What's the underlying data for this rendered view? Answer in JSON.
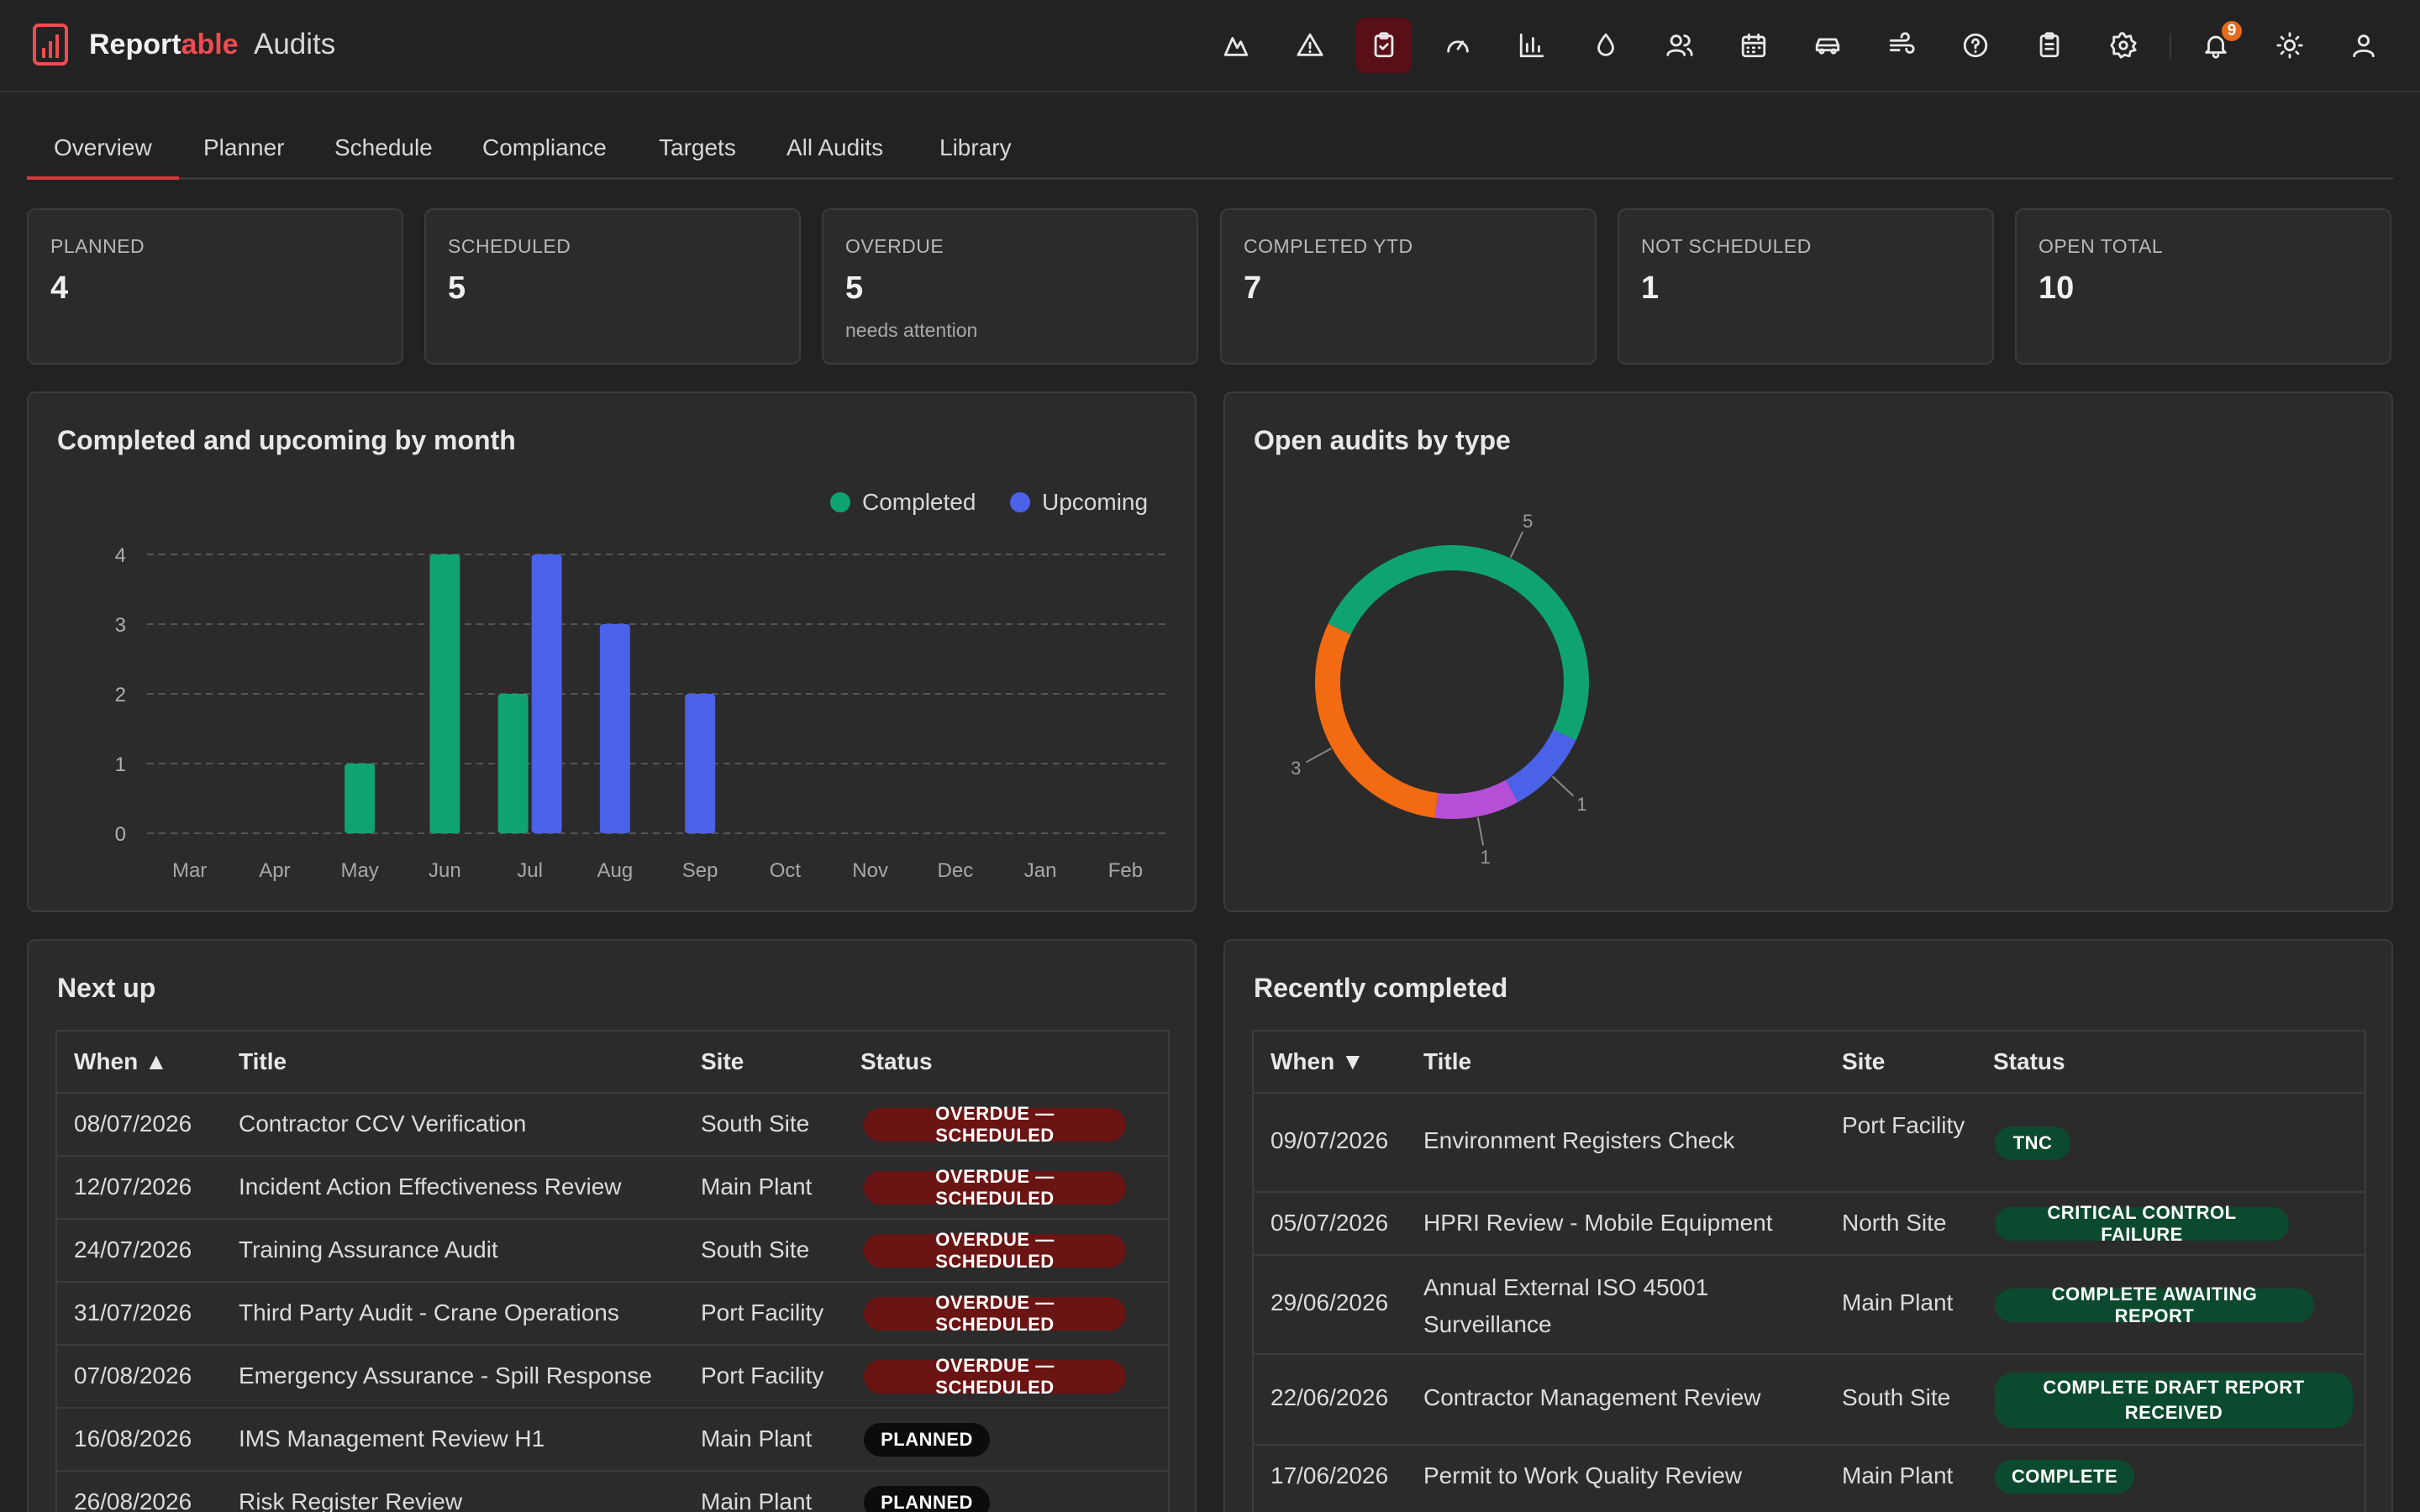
{
  "app": {
    "brand_part1": "Report",
    "brand_part2": "able",
    "section": "Audits",
    "notification_count": "9"
  },
  "nav_icons": [
    "mountain-icon",
    "alert-triangle-icon",
    "clipboard-check-icon",
    "gauge-icon",
    "bar-chart-icon",
    "droplet-icon",
    "users-icon",
    "calendar-icon",
    "car-icon",
    "wind-icon",
    "help-circle-icon",
    "clipboard-list-icon",
    "gear-icon",
    "bell-icon",
    "sun-icon",
    "user-icon"
  ],
  "tabs": [
    "Overview",
    "Planner",
    "Schedule",
    "Compliance",
    "Targets",
    "All Audits",
    "Library"
  ],
  "kpis": [
    {
      "label": "PLANNED",
      "value": "4",
      "sub": ""
    },
    {
      "label": "SCHEDULED",
      "value": "5",
      "sub": ""
    },
    {
      "label": "OVERDUE",
      "value": "5",
      "sub": "needs attention"
    },
    {
      "label": "COMPLETED YTD",
      "value": "7",
      "sub": ""
    },
    {
      "label": "NOT SCHEDULED",
      "value": "1",
      "sub": ""
    },
    {
      "label": "OPEN TOTAL",
      "value": "10",
      "sub": ""
    }
  ],
  "bar_panel": {
    "title": "Completed and upcoming by month"
  },
  "donut_panel": {
    "title": "Open audits by type"
  },
  "chart_data": [
    {
      "type": "bar",
      "title": "Completed and upcoming by month",
      "categories": [
        "Mar",
        "Apr",
        "May",
        "Jun",
        "Jul",
        "Aug",
        "Sep",
        "Oct",
        "Nov",
        "Dec",
        "Jan",
        "Feb"
      ],
      "series": [
        {
          "name": "Completed",
          "color": "#10a372",
          "values": [
            0,
            0,
            1,
            4,
            2,
            0,
            0,
            0,
            0,
            0,
            0,
            0
          ]
        },
        {
          "name": "Upcoming",
          "color": "#4a62e8",
          "values": [
            0,
            0,
            0,
            0,
            4,
            3,
            2,
            0,
            0,
            0,
            0,
            0
          ]
        }
      ],
      "yticks": [
        0,
        1,
        2,
        3,
        4
      ],
      "ylim": [
        0,
        4
      ],
      "grid": true,
      "legend": "top-right"
    },
    {
      "type": "pie",
      "title": "Open audits by type",
      "slices": [
        {
          "value": 5,
          "color": "#10a372"
        },
        {
          "value": 1,
          "color": "#4a62e8"
        },
        {
          "value": 1,
          "color": "#b44fd6"
        },
        {
          "value": 3,
          "color": "#f26a12"
        }
      ]
    }
  ],
  "next_up": {
    "title": "Next up",
    "headers": {
      "when": "When ▲",
      "title": "Title",
      "site": "Site",
      "status": "Status"
    },
    "rows": [
      {
        "when": "08/07/2026",
        "title": "Contractor CCV Verification",
        "site": "South Site",
        "status": "OVERDUE — SCHEDULED"
      },
      {
        "when": "12/07/2026",
        "title": "Incident Action Effectiveness Review",
        "site": "Main Plant",
        "status": "OVERDUE — SCHEDULED"
      },
      {
        "when": "24/07/2026",
        "title": "Training Assurance Audit",
        "site": "South Site",
        "status": "OVERDUE — SCHEDULED"
      },
      {
        "when": "31/07/2026",
        "title": "Third Party Audit - Crane Operations",
        "site": "Port Facility",
        "status": "OVERDUE — SCHEDULED"
      },
      {
        "when": "07/08/2026",
        "title": "Emergency Assurance - Spill Response",
        "site": "Port Facility",
        "status": "OVERDUE — SCHEDULED"
      },
      {
        "when": "16/08/2026",
        "title": "IMS Management Review H1",
        "site": "Main Plant",
        "status": "PLANNED"
      },
      {
        "when": "26/08/2026",
        "title": "Risk Register Review",
        "site": "Main Plant",
        "status": "PLANNED"
      }
    ]
  },
  "recent": {
    "title": "Recently completed",
    "headers": {
      "when": "When ▼",
      "title": "Title",
      "site": "Site",
      "status": "Status"
    },
    "rows": [
      {
        "when": "09/07/2026",
        "title": "Environment Registers Check",
        "site": "Port Facility",
        "status": "TNC"
      },
      {
        "when": "05/07/2026",
        "title": "HPRI Review - Mobile Equipment",
        "site": "North Site",
        "status": "CRITICAL CONTROL FAILURE"
      },
      {
        "when": "29/06/2026",
        "title": "Annual External ISO 45001 Surveillance",
        "site": "Main Plant",
        "status": "COMPLETE AWAITING REPORT"
      },
      {
        "when": "22/06/2026",
        "title": "Contractor Management Review",
        "site": "South Site",
        "status": "COMPLETE DRAFT REPORT RECEIVED"
      },
      {
        "when": "17/06/2026",
        "title": "Permit to Work Quality Review",
        "site": "Main Plant",
        "status": "COMPLETE"
      }
    ]
  }
}
